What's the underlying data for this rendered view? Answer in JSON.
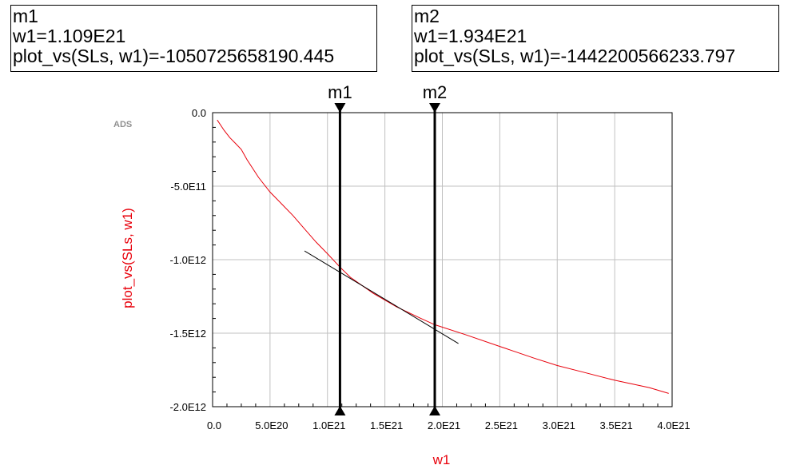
{
  "markers": [
    {
      "name": "m1",
      "line1": "w1=1.109E21",
      "line2": "plot_vs(SLs, w1)=-1050725658190.445",
      "x": 1.109e+21,
      "y": -1050725658190.445
    },
    {
      "name": "m2",
      "line1": "w1=1.934E21",
      "line2": "plot_vs(SLs, w1)=-1442200566233.797",
      "x": 1.934e+21,
      "y": -1442200566233.797
    }
  ],
  "brand": "ADS",
  "chart_data": {
    "type": "line",
    "xlabel": "w1",
    "ylabel": "plot_vs(SLs, w1)",
    "xlim": [
      0,
      4e+21
    ],
    "ylim": [
      -2000000000000.0,
      0
    ],
    "x_ticks": [
      "0.0",
      "5.0E20",
      "1.0E21",
      "1.5E21",
      "2.0E21",
      "2.5E21",
      "3.0E21",
      "3.5E21",
      "4.0E21"
    ],
    "y_ticks": [
      "0.0",
      "-5.0E11",
      "-1.0E12",
      "-1.5E12",
      "-2.0E12"
    ],
    "grid": true,
    "series": [
      {
        "color": "#e8000b",
        "x": [
          4e+19,
          1e+20,
          1.5e+20,
          2e+20,
          2.5e+20,
          3e+20,
          4e+20,
          5e+20,
          6e+20,
          7e+20,
          8e+20,
          9e+20,
          1e+21,
          1.109e+21,
          1.2e+21,
          1.4e+21,
          1.6e+21,
          1.8e+21,
          1.934e+21,
          2.2e+21,
          2.5e+21,
          2.8e+21,
          3e+21,
          3.2e+21,
          3.5e+21,
          3.8e+21,
          3.97e+21
        ],
        "y": [
          -50000000000.0,
          -120000000000.0,
          -170000000000.0,
          -210000000000.0,
          -250000000000.0,
          -320000000000.0,
          -440000000000.0,
          -540000000000.0,
          -620000000000.0,
          -700000000000.0,
          -790000000000.0,
          -880000000000.0,
          -960000000000.0,
          -1050700000000.0,
          -1120000000000.0,
          -1230000000000.0,
          -1320000000000.0,
          -1395000000000.0,
          -1442200000000.0,
          -1510000000000.0,
          -1590000000000.0,
          -1670000000000.0,
          -1720000000000.0,
          -1760000000000.0,
          -1820000000000.0,
          -1870000000000.0,
          -1910000000000.0
        ]
      },
      {
        "color": "#000000",
        "x": [
          8e+20,
          2.14e+21
        ],
        "y": [
          -940000000000.0,
          -1570000000000.0
        ]
      }
    ]
  }
}
